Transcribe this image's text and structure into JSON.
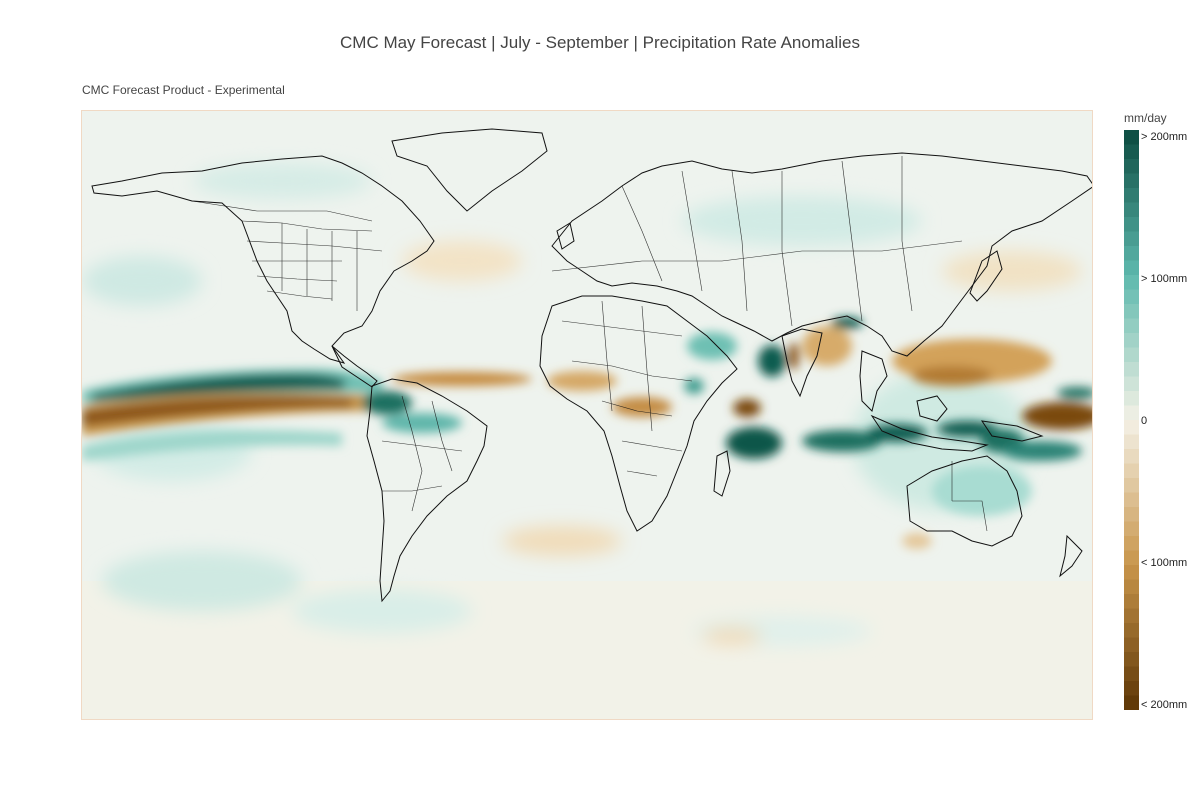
{
  "header": {
    "title": "CMC May Forecast | July - September | Precipitation Rate Anomalies",
    "subtitle": "CMC Forecast Product - Experimental"
  },
  "map": {
    "projection": "equirectangular",
    "variable": "precipitation-rate-anomaly",
    "basemap_features": [
      "country-borders",
      "us-state-borders",
      "coastlines"
    ],
    "notable_anomalies": [
      {
        "region": "Equatorial East Pacific (north of equator)",
        "sign": "wet"
      },
      {
        "region": "Equatorial East Pacific (along equator)",
        "sign": "dry"
      },
      {
        "region": "Maritime Continent / Indonesia",
        "sign": "wet"
      },
      {
        "region": "Central Indian Ocean",
        "sign": "wet"
      },
      {
        "region": "Western Indian Ocean",
        "sign": "dry"
      },
      {
        "region": "Southeast Asia / South China Sea",
        "sign": "dry"
      },
      {
        "region": "Sahel / West Africa",
        "sign": "dry"
      },
      {
        "region": "Western Tropical Pacific",
        "sign": "dry"
      }
    ]
  },
  "colorbar": {
    "title": "mm/day",
    "colorscale": "BrBG",
    "ticks": [
      {
        "label": "> 200mm",
        "level": 1.0
      },
      {
        "label": "> 100mm",
        "level": 0.75
      },
      {
        "label": "0",
        "level": 0.5
      },
      {
        "label": "< 100mm",
        "level": 0.25
      },
      {
        "label": "< 200mm",
        "level": 0.0
      }
    ],
    "colors": {
      "wet_max": "#0b4a40",
      "wet_mid": "#5db9ad",
      "neutral": "#f4f1e6",
      "dry_mid": "#c8954a",
      "dry_max": "#5c3505"
    }
  }
}
